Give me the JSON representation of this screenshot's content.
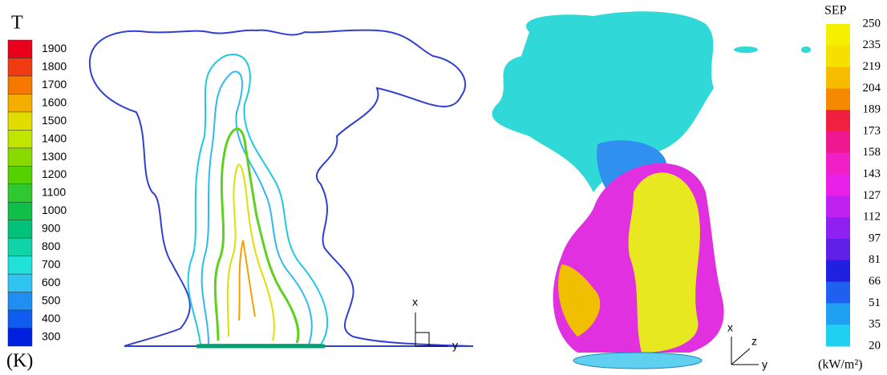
{
  "left_panel": {
    "legend": {
      "title": "T",
      "unit": "(K)",
      "levels": [
        1900,
        1800,
        1700,
        1600,
        1500,
        1400,
        1300,
        1200,
        1100,
        1000,
        900,
        800,
        700,
        600,
        500,
        400,
        300
      ],
      "colors": [
        "#e8001a",
        "#f03a10",
        "#f57800",
        "#f5ad00",
        "#e2dc00",
        "#c0e600",
        "#88da00",
        "#55d000",
        "#30c830",
        "#10bf48",
        "#00c278",
        "#10d4a8",
        "#20e2d8",
        "#30c4f2",
        "#208ef2",
        "#105cf0",
        "#0020e0"
      ]
    },
    "axes": {
      "x": "x",
      "y": "y"
    }
  },
  "right_panel": {
    "legend": {
      "title": "SEP",
      "unit": "(kW/m²)",
      "levels": [
        250,
        235,
        219,
        204,
        189,
        173,
        158,
        143,
        127,
        112,
        97,
        81,
        66,
        51,
        35,
        20
      ],
      "colors": [
        "#f5f000",
        "#f5e000",
        "#f5bc00",
        "#f58a00",
        "#f02040",
        "#f01890",
        "#f020c8",
        "#e820e8",
        "#c020f0",
        "#9020f0",
        "#6020e8",
        "#2020e0",
        "#2060f0",
        "#20a0f0",
        "#20d0f0",
        "#20eef0"
      ]
    },
    "axes": {
      "x": "x",
      "z": "z",
      "y": "y"
    }
  }
}
